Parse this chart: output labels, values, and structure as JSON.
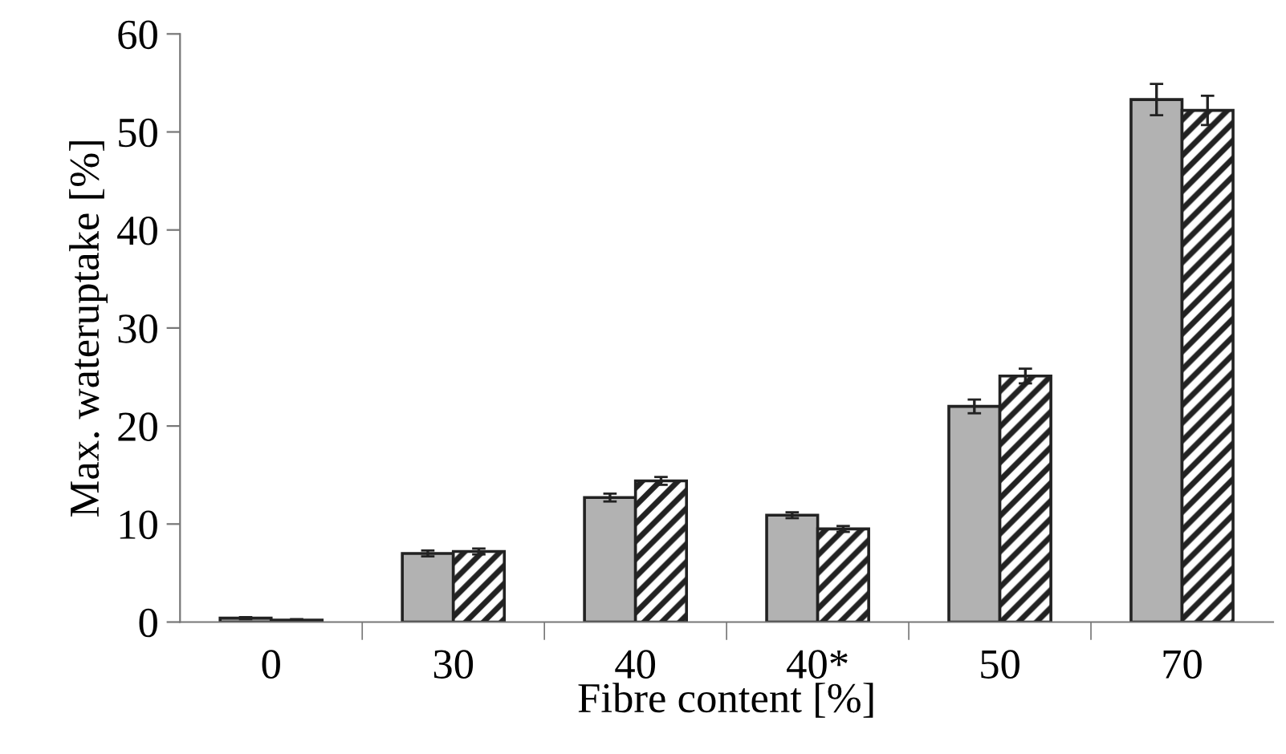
{
  "chart_data": {
    "type": "bar",
    "xlabel": "Fibre content [%]",
    "ylabel": "Max. wateruptake [%]",
    "categories": [
      "0",
      "30",
      "40",
      "40*",
      "50",
      "70"
    ],
    "series": [
      {
        "color": "#b2b2b2",
        "values": [
          0.4,
          7.0,
          12.7,
          10.9,
          22.0,
          53.3
        ],
        "errors": [
          0.1,
          0.3,
          0.4,
          0.3,
          0.7,
          1.6
        ]
      },
      {
        "color": "#222222",
        "values": [
          0.2,
          7.2,
          14.4,
          9.5,
          25.1,
          52.2
        ],
        "errors": [
          0.1,
          0.3,
          0.4,
          0.3,
          0.75,
          1.5
        ]
      }
    ],
    "ylim": [
      0,
      60
    ],
    "yticks": [
      0,
      10,
      20,
      30,
      40,
      50,
      60
    ],
    "grid": false,
    "legend": false
  }
}
